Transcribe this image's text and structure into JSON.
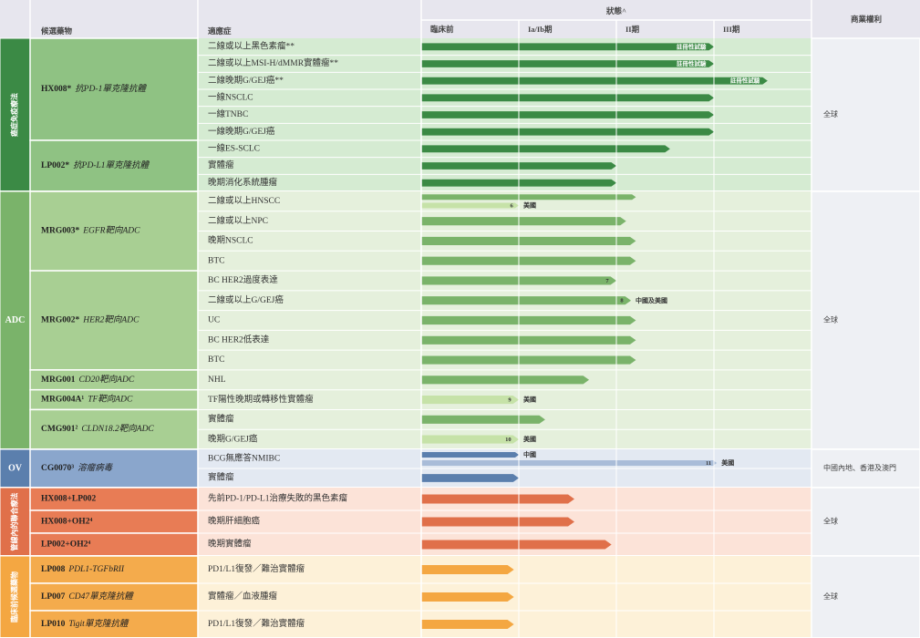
{
  "header": {
    "candidate": "候選藥物",
    "indication": "適應症",
    "status": "狀態^",
    "phases": [
      "臨床前",
      "Ia/Ib期",
      "II期",
      "III期"
    ],
    "rights": "商業權利"
  },
  "groups": [
    {
      "name": "癌症免疫療法",
      "rights": "全球",
      "color": "#3b8a45",
      "light_color": "#9fce8f",
      "candidates": [
        {
          "name": "HX008*",
          "desc": "抗PD-1單克隆抗體",
          "rows": [
            {
              "indication": "二線或以上黑色素瘤**",
              "bars": [
                {
                  "progress": 3.0,
                  "label": "註冊性試驗"
                }
              ]
            },
            {
              "indication": "二線或以上MSI-H/dMMR實體瘤**",
              "bars": [
                {
                  "progress": 3.0,
                  "label": "註冊性試驗"
                }
              ]
            },
            {
              "indication": "二線晚期G/GEJ癌**",
              "bars": [
                {
                  "progress": 3.55,
                  "label": "註冊性試驗"
                }
              ]
            },
            {
              "indication": "一線NSCLC",
              "bars": [
                {
                  "progress": 3.0
                }
              ]
            },
            {
              "indication": "一線TNBC",
              "bars": [
                {
                  "progress": 3.0
                }
              ]
            },
            {
              "indication": "一線晚期G/GEJ癌",
              "bars": [
                {
                  "progress": 3.0
                }
              ]
            }
          ]
        },
        {
          "name": "LP002*",
          "desc": "抗PD-L1單克隆抗體",
          "rows": [
            {
              "indication": "一線ES-SCLC",
              "bars": [
                {
                  "progress": 2.55
                }
              ]
            },
            {
              "indication": "實體瘤",
              "bars": [
                {
                  "progress": 2.0
                }
              ]
            },
            {
              "indication": "晚期消化系統腫瘤",
              "bars": [
                {
                  "progress": 2.0
                }
              ]
            }
          ]
        }
      ]
    },
    {
      "name": "ADC",
      "rights": "全球",
      "color": "#7ab36a",
      "light_color": "#c6e2a8",
      "candidates": [
        {
          "name": "MRG003*",
          "desc": "EGFR靶向ADC",
          "rows": [
            {
              "indication": "二線或以上HNSCC",
              "bars": [
                {
                  "progress": 2.2
                },
                {
                  "progress": 1.0,
                  "tone": "light",
                  "note": "6",
                  "region": "美國"
                }
              ]
            },
            {
              "indication": "二線或以上NPC",
              "bars": [
                {
                  "progress": 2.1
                }
              ]
            },
            {
              "indication": "晚期NSCLC",
              "bars": [
                {
                  "progress": 2.2
                }
              ]
            },
            {
              "indication": "BTC",
              "bars": [
                {
                  "progress": 2.2
                }
              ]
            }
          ]
        },
        {
          "name": "MRG002*",
          "desc": "HER2靶向ADC",
          "rows": [
            {
              "indication": "BC HER2過度表達",
              "bars": [
                {
                  "progress": 2.0,
                  "note": "7"
                }
              ]
            },
            {
              "indication": "二線或以上G/GEJ癌",
              "bars": [
                {
                  "progress": 2.15,
                  "note": "8",
                  "region": "中國及美國"
                }
              ]
            },
            {
              "indication": "UC",
              "bars": [
                {
                  "progress": 2.2
                }
              ]
            },
            {
              "indication": "BC HER2低表達",
              "bars": [
                {
                  "progress": 2.2
                }
              ]
            },
            {
              "indication": "BTC",
              "bars": [
                {
                  "progress": 2.2
                }
              ]
            }
          ]
        },
        {
          "name": "MRG001",
          "desc": "CD20靶向ADC",
          "rows": [
            {
              "indication": "NHL",
              "bars": [
                {
                  "progress": 1.72
                }
              ]
            }
          ]
        },
        {
          "name": "MRG004A¹",
          "desc": "TF靶向ADC",
          "rows": [
            {
              "indication": "TF陽性晚期或轉移性實體瘤",
              "bars": [
                {
                  "progress": 1.0,
                  "tone": "light",
                  "note": "9",
                  "region": "美國"
                }
              ]
            }
          ]
        },
        {
          "name": "CMG901²",
          "desc": "CLDN18.2靶向ADC",
          "rows": [
            {
              "indication": "實體瘤",
              "bars": [
                {
                  "progress": 1.27
                }
              ]
            },
            {
              "indication": "晚期G/GEJ癌",
              "bars": [
                {
                  "progress": 1.0,
                  "tone": "light",
                  "note": "10",
                  "region": "美國"
                }
              ]
            }
          ]
        }
      ]
    },
    {
      "name": "OV",
      "rights": "中國內地、香港及澳門",
      "color": "#5b7fad",
      "light_color": "#a9bcd8",
      "candidates": [
        {
          "name": "CG0070³",
          "desc": "溶瘤病毒",
          "rows": [
            {
              "indication": "BCG無應答NMIBC",
              "bars": [
                {
                  "progress": 1.0,
                  "region": "中國"
                },
                {
                  "progress": 3.03,
                  "tone": "light",
                  "note": "11",
                  "region": "美國"
                }
              ]
            },
            {
              "indication": "實體瘤",
              "bars": [
                {
                  "progress": 1.0
                }
              ]
            }
          ]
        }
      ]
    },
    {
      "name": "管線內的聯合療法",
      "rights": "全球",
      "color": "#e0704a",
      "light_color": "#f2b49a",
      "candidates": [
        {
          "name": "HX008+LP002",
          "rows": [
            {
              "indication": "先前PD-1/PD-L1治療失敗的黑色素瘤",
              "bars": [
                {
                  "progress": 1.57
                }
              ]
            }
          ]
        },
        {
          "name": "HX008+OH2⁴",
          "rows": [
            {
              "indication": "晚期肝細胞癌",
              "bars": [
                {
                  "progress": 1.57
                }
              ]
            }
          ]
        },
        {
          "name": "LP002+OH2⁴",
          "rows": [
            {
              "indication": "晚期實體瘤",
              "bars": [
                {
                  "progress": 1.95
                }
              ]
            }
          ]
        }
      ]
    },
    {
      "name": "臨床前候選藥物",
      "rights": "全球",
      "color": "#f4a742",
      "light_color": "#f8cf94",
      "candidates": [
        {
          "name": "LP008",
          "desc": "PDL1-TGFbRII",
          "rows": [
            {
              "indication": "PD1/L1復發／難治實體瘤",
              "bars": [
                {
                  "progress": 0.95
                }
              ]
            }
          ]
        },
        {
          "name": "LP007",
          "desc": "CD47單克隆抗體",
          "rows": [
            {
              "indication": "實體瘤／血液腫瘤",
              "bars": [
                {
                  "progress": 0.95
                }
              ]
            }
          ]
        },
        {
          "name": "LP010",
          "desc": "Tigit單克隆抗體",
          "rows": [
            {
              "indication": "PD1/L1復發／難治實體瘤",
              "bars": [
                {
                  "progress": 0.95
                }
              ]
            }
          ]
        }
      ]
    }
  ]
}
